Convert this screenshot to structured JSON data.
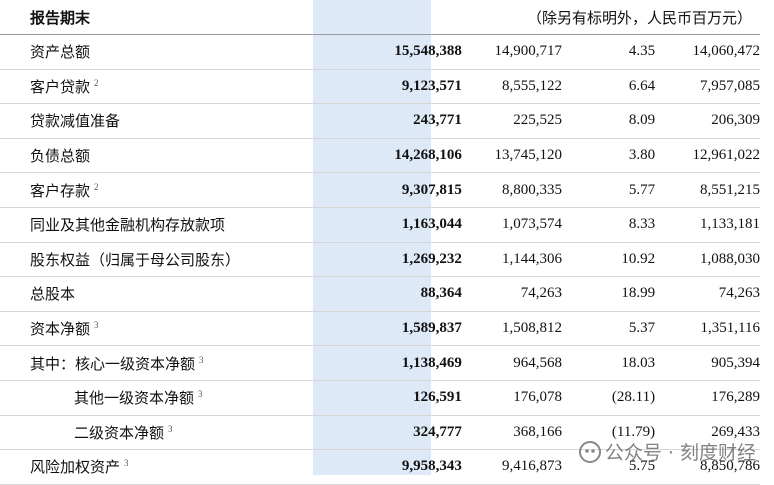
{
  "header": {
    "title": "报告期末",
    "note": "（除另有标明外，人民币百万元）"
  },
  "table": {
    "rows": [
      {
        "label": "资产总额",
        "values": [
          "15,548,388",
          "14,900,717",
          "4.35",
          "14,060,472"
        ]
      },
      {
        "label": "客户贷款",
        "sup": "2",
        "values": [
          "9,123,571",
          "8,555,122",
          "6.64",
          "7,957,085"
        ]
      },
      {
        "label": "贷款减值准备",
        "values": [
          "243,771",
          "225,525",
          "8.09",
          "206,309"
        ]
      },
      {
        "label": "负债总额",
        "values": [
          "14,268,106",
          "13,745,120",
          "3.80",
          "12,961,022"
        ]
      },
      {
        "label": "客户存款",
        "sup": "2",
        "values": [
          "9,307,815",
          "8,800,335",
          "5.77",
          "8,551,215"
        ]
      },
      {
        "label": "同业及其他金融机构存放款项",
        "values": [
          "1,163,044",
          "1,073,574",
          "8.33",
          "1,133,181"
        ]
      },
      {
        "label": "股东权益（归属于母公司股东）",
        "values": [
          "1,269,232",
          "1,144,306",
          "10.92",
          "1,088,030"
        ]
      },
      {
        "label": "总股本",
        "values": [
          "88,364",
          "74,263",
          "18.99",
          "74,263"
        ]
      },
      {
        "label": "资本净额",
        "sup": "3",
        "values": [
          "1,589,837",
          "1,508,812",
          "5.37",
          "1,351,116"
        ]
      },
      {
        "label": "其中：核心一级资本净额",
        "sup": "3",
        "values": [
          "1,138,469",
          "964,568",
          "18.03",
          "905,394"
        ]
      },
      {
        "label": "其他一级资本净额",
        "sup": "3",
        "values": [
          "126,591",
          "176,078",
          "(28.11)",
          "176,289"
        ]
      },
      {
        "label": "二级资本净额",
        "sup": "3",
        "values": [
          "324,777",
          "368,166",
          "(11.79)",
          "269,433"
        ]
      },
      {
        "label": "风险加权资产",
        "sup": "3",
        "values": [
          "9,958,343",
          "9,416,873",
          "5.75",
          "8,850,786"
        ]
      }
    ]
  },
  "watermark": "公众号 · 刻度财经"
}
